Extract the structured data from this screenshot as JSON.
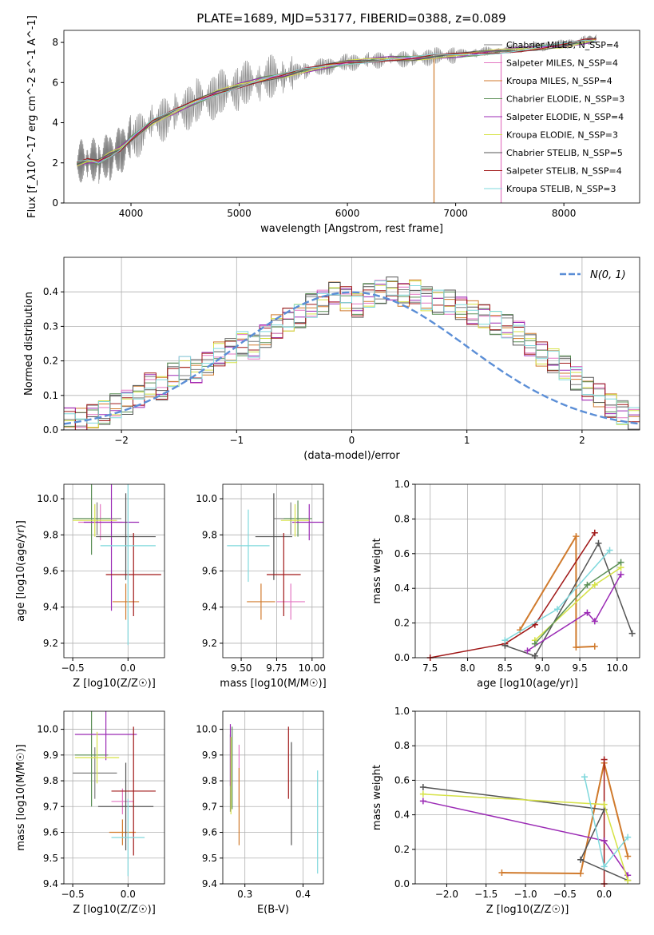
{
  "figure_title": "PLATE=1689, MJD=53177, FIBERID=0388, z=0.089",
  "models": [
    {
      "name": "Chabrier MILES, N_SSP=4",
      "color": "#7f7f7f"
    },
    {
      "name": "Salpeter MILES, N_SSP=4",
      "color": "#e377c2"
    },
    {
      "name": "Kroupa MILES, N_SSP=4",
      "color": "#d07a2c"
    },
    {
      "name": "Chabrier ELODIE, N_SSP=3",
      "color": "#5a8f55"
    },
    {
      "name": "Salpeter ELODIE, N_SSP=4",
      "color": "#9b2bb5"
    },
    {
      "name": "Kroupa ELODIE, N_SSP=3",
      "color": "#d6e246"
    },
    {
      "name": "Chabrier STELIB, N_SSP=5",
      "color": "#555555"
    },
    {
      "name": "Salpeter STELIB, N_SSP=4",
      "color": "#a01818"
    },
    {
      "name": "Kroupa STELIB, N_SSP=3",
      "color": "#7fd8dc"
    }
  ],
  "chart_data": [
    {
      "id": "spectrum",
      "type": "line",
      "xlabel": "wavelength [Angstrom, rest frame]",
      "ylabel": "Flux [f_λ10^-17 erg cm^-2 s^-1 A^-1]",
      "xlim": [
        3380,
        8700
      ],
      "ylim": [
        0,
        8.6
      ],
      "xticks": [
        4000,
        5000,
        6000,
        7000,
        8000
      ],
      "yticks": [
        0,
        2,
        4,
        6,
        8
      ],
      "legend": "top-right",
      "data_series": {
        "name": "data",
        "color": "#808080",
        "x": [
          3500,
          3600,
          3700,
          3800,
          3900,
          4000,
          4200,
          4400,
          4600,
          4800,
          5000,
          5200,
          5400,
          5600,
          5800,
          6000,
          6200,
          6400,
          6600,
          6800,
          7000,
          7200,
          7400,
          7600,
          7800,
          8000,
          8200,
          8300
        ],
        "y": [
          1.9,
          2.1,
          2.0,
          2.3,
          2.6,
          3.2,
          4.0,
          4.5,
          5.0,
          5.4,
          5.8,
          6.1,
          6.3,
          6.6,
          6.8,
          7.0,
          7.1,
          7.2,
          7.2,
          7.3,
          7.4,
          7.5,
          7.6,
          7.7,
          7.8,
          7.9,
          8.1,
          8.2
        ]
      },
      "model_x": [
        3500,
        3600,
        3700,
        3800,
        3900,
        4000,
        4200,
        4400,
        4600,
        4800,
        5000,
        5200,
        5400,
        5600,
        5800,
        6000,
        6200,
        6400,
        6600,
        6800,
        7000,
        7200,
        7400,
        7600,
        7800,
        8000,
        8200,
        8300
      ],
      "model_y": [
        1.95,
        2.1,
        2.05,
        2.4,
        2.7,
        3.2,
        4.05,
        4.55,
        5.05,
        5.5,
        5.85,
        6.15,
        6.35,
        6.6,
        6.8,
        7.0,
        7.1,
        7.2,
        7.2,
        7.3,
        7.35,
        7.45,
        7.55,
        7.65,
        7.75,
        7.85,
        8.05,
        8.1
      ]
    },
    {
      "id": "residuals",
      "type": "line",
      "xlabel": "(data-model)/error",
      "ylabel": "Normed distribution",
      "xlim": [
        -2.5,
        2.5
      ],
      "ylim": [
        0,
        0.5
      ],
      "xticks": [
        -2,
        -1,
        0,
        1,
        2
      ],
      "yticks": [
        0.0,
        0.1,
        0.2,
        0.3,
        0.4
      ],
      "legend": "top-right",
      "gaussian_label": "N(0, 1)",
      "gaussian_color": "#5b8ed6",
      "bin_edges_start": -2.5,
      "bin_width": 0.1,
      "hist": [
        0.03,
        0.03,
        0.04,
        0.05,
        0.07,
        0.08,
        0.1,
        0.13,
        0.12,
        0.16,
        0.18,
        0.17,
        0.19,
        0.22,
        0.23,
        0.25,
        0.24,
        0.27,
        0.3,
        0.32,
        0.33,
        0.36,
        0.37,
        0.4,
        0.38,
        0.36,
        0.39,
        0.4,
        0.41,
        0.39,
        0.4,
        0.38,
        0.37,
        0.37,
        0.35,
        0.34,
        0.33,
        0.31,
        0.3,
        0.28,
        0.25,
        0.22,
        0.2,
        0.18,
        0.15,
        0.12,
        0.1,
        0.07,
        0.05,
        0.03
      ]
    },
    {
      "id": "age_vs_Z",
      "type": "scatter",
      "xlabel": "Z [log10(Z/Z☉)]",
      "ylabel": "age [log10(age/yr)]",
      "xlim": [
        -0.58,
        0.33
      ],
      "ylim": [
        9.12,
        10.08
      ],
      "xticks": [
        -0.5,
        0.0
      ],
      "yticks": [
        9.2,
        9.4,
        9.6,
        9.8,
        10.0
      ],
      "points": [
        {
          "x": -0.28,
          "y": 9.89,
          "xerr": 0.22,
          "yerr": 0.09,
          "model": 0
        },
        {
          "x": -0.25,
          "y": 9.87,
          "xerr": 0.2,
          "yerr": 0.1,
          "model": 1
        },
        {
          "x": -0.02,
          "y": 9.43,
          "xerr": 0.12,
          "yerr": 0.1,
          "model": 2
        },
        {
          "x": -0.33,
          "y": 9.89,
          "xerr": 0.17,
          "yerr": 0.2,
          "model": 3
        },
        {
          "x": -0.15,
          "y": 9.87,
          "xerr": 0.25,
          "yerr": 0.49,
          "model": 4
        },
        {
          "x": -0.3,
          "y": 9.88,
          "xerr": 0.2,
          "yerr": 0.09,
          "model": 5
        },
        {
          "x": -0.02,
          "y": 9.79,
          "xerr": 0.27,
          "yerr": 0.24,
          "model": 6
        },
        {
          "x": 0.05,
          "y": 9.58,
          "xerr": 0.25,
          "yerr": 0.23,
          "model": 7
        },
        {
          "x": 0.0,
          "y": 9.74,
          "xerr": 0.25,
          "yerr": 0.55,
          "model": 8
        }
      ]
    },
    {
      "id": "age_vs_mass",
      "type": "scatter",
      "xlabel": "mass [log10(M/M☉)]",
      "ylabel": "",
      "xlim": [
        9.37,
        10.08
      ],
      "ylim": [
        9.12,
        10.08
      ],
      "xticks": [
        9.5,
        9.75,
        10.0
      ],
      "yticks": [
        9.2,
        9.4,
        9.6,
        9.8,
        10.0
      ],
      "points": [
        {
          "x": 9.85,
          "y": 9.89,
          "xerr": 0.12,
          "yerr": 0.09,
          "model": 0
        },
        {
          "x": 9.85,
          "y": 9.43,
          "xerr": 0.1,
          "yerr": 0.1,
          "model": 1
        },
        {
          "x": 9.64,
          "y": 9.43,
          "xerr": 0.1,
          "yerr": 0.1,
          "model": 2
        },
        {
          "x": 9.9,
          "y": 9.89,
          "xerr": 0.1,
          "yerr": 0.1,
          "model": 3
        },
        {
          "x": 9.98,
          "y": 9.87,
          "xerr": 0.12,
          "yerr": 0.1,
          "model": 4
        },
        {
          "x": 9.88,
          "y": 9.88,
          "xerr": 0.1,
          "yerr": 0.09,
          "model": 5
        },
        {
          "x": 9.73,
          "y": 9.79,
          "xerr": 0.13,
          "yerr": 0.24,
          "model": 6
        },
        {
          "x": 9.8,
          "y": 9.58,
          "xerr": 0.12,
          "yerr": 0.23,
          "model": 7
        },
        {
          "x": 9.55,
          "y": 9.74,
          "xerr": 0.15,
          "yerr": 0.2,
          "model": 8
        }
      ]
    },
    {
      "id": "weight_vs_age",
      "type": "line",
      "xlabel": "age  [log10(age/yr)]",
      "ylabel": "mass weight",
      "xlim": [
        7.3,
        10.3
      ],
      "ylim": [
        0,
        1.0
      ],
      "xticks": [
        7.5,
        8.0,
        8.5,
        9.0,
        9.5,
        10.0
      ],
      "yticks": [
        0.0,
        0.2,
        0.4,
        0.6,
        0.8,
        1.0
      ],
      "lines": [
        {
          "model": 2,
          "x": [
            8.7,
            9.45,
            9.45,
            9.7
          ],
          "y": [
            0.16,
            0.7,
            0.06,
            0.065
          ]
        },
        {
          "model": 7,
          "x": [
            7.5,
            8.5,
            8.9,
            9.7
          ],
          "y": [
            0.0,
            0.08,
            0.19,
            0.72
          ]
        },
        {
          "model": 6,
          "x": [
            8.5,
            8.9,
            9.75,
            10.2
          ],
          "y": [
            0.07,
            0.01,
            0.66,
            0.14
          ]
        },
        {
          "model": 4,
          "x": [
            8.8,
            9.6,
            9.7,
            10.05
          ],
          "y": [
            0.04,
            0.26,
            0.21,
            0.48
          ]
        },
        {
          "model": 5,
          "x": [
            8.9,
            9.7,
            10.05
          ],
          "y": [
            0.1,
            0.42,
            0.52
          ]
        },
        {
          "model": 3,
          "x": [
            8.9,
            9.6,
            10.05
          ],
          "y": [
            0.08,
            0.42,
            0.55
          ]
        },
        {
          "model": 8,
          "x": [
            8.5,
            9.2,
            9.9
          ],
          "y": [
            0.1,
            0.28,
            0.62
          ]
        }
      ]
    },
    {
      "id": "mass_vs_Z",
      "type": "scatter",
      "xlabel": "Z [log10(Z/Z☉)]",
      "ylabel": "mass [log10(M/M☉)]",
      "xlim": [
        -0.58,
        0.33
      ],
      "ylim": [
        9.4,
        10.07
      ],
      "xticks": [
        -0.5,
        0.0
      ],
      "yticks": [
        9.4,
        9.5,
        9.6,
        9.7,
        9.8,
        9.9,
        10.0
      ],
      "points": [
        {
          "x": -0.3,
          "y": 9.83,
          "xerr": 0.2,
          "yerr": 0.1,
          "model": 0
        },
        {
          "x": -0.05,
          "y": 9.72,
          "xerr": 0.1,
          "yerr": 0.05,
          "model": 1
        },
        {
          "x": -0.05,
          "y": 9.6,
          "xerr": 0.12,
          "yerr": 0.05,
          "model": 2
        },
        {
          "x": -0.33,
          "y": 9.9,
          "xerr": 0.15,
          "yerr": 0.2,
          "model": 3
        },
        {
          "x": -0.2,
          "y": 9.98,
          "xerr": 0.28,
          "yerr": 0.1,
          "model": 4
        },
        {
          "x": -0.28,
          "y": 9.89,
          "xerr": 0.2,
          "yerr": 0.1,
          "model": 5
        },
        {
          "x": -0.02,
          "y": 9.7,
          "xerr": 0.25,
          "yerr": 0.17,
          "model": 6
        },
        {
          "x": 0.05,
          "y": 9.76,
          "xerr": 0.2,
          "yerr": 0.25,
          "model": 7
        },
        {
          "x": 0.0,
          "y": 9.58,
          "xerr": 0.15,
          "yerr": 0.15,
          "model": 8
        }
      ]
    },
    {
      "id": "mass_vs_EBV",
      "type": "scatter",
      "xlabel": "E(B-V)",
      "ylabel": "",
      "xlim": [
        0.262,
        0.435
      ],
      "ylim": [
        9.4,
        10.07
      ],
      "xticks": [
        0.3,
        0.4
      ],
      "yticks": [
        9.4,
        9.5,
        9.6,
        9.7,
        9.8,
        9.9,
        10.0
      ],
      "points": [
        {
          "x": 0.275,
          "y": 9.83,
          "yerr": 0.15,
          "model": 0
        },
        {
          "x": 0.29,
          "y": 9.82,
          "yerr": 0.12,
          "model": 1
        },
        {
          "x": 0.29,
          "y": 9.7,
          "yerr": 0.15,
          "model": 2
        },
        {
          "x": 0.278,
          "y": 9.85,
          "yerr": 0.16,
          "model": 3
        },
        {
          "x": 0.275,
          "y": 9.9,
          "yerr": 0.12,
          "model": 4
        },
        {
          "x": 0.276,
          "y": 9.82,
          "yerr": 0.15,
          "model": 5
        },
        {
          "x": 0.38,
          "y": 9.75,
          "yerr": 0.2,
          "model": 6
        },
        {
          "x": 0.375,
          "y": 9.87,
          "yerr": 0.14,
          "model": 7
        },
        {
          "x": 0.425,
          "y": 9.64,
          "yerr": 0.2,
          "model": 8
        }
      ]
    },
    {
      "id": "weight_vs_Z",
      "type": "line",
      "xlabel": "Z [log10(Z/Z☉)]",
      "ylabel": "mass weight",
      "xlim": [
        -2.4,
        0.45
      ],
      "ylim": [
        0,
        1.0
      ],
      "xticks": [
        -2.0,
        -1.5,
        -1.0,
        -0.5,
        0.0
      ],
      "yticks": [
        0.0,
        0.2,
        0.4,
        0.6,
        0.8,
        1.0
      ],
      "lines": [
        {
          "model": 2,
          "x": [
            -1.3,
            -0.3,
            0.0,
            0.3
          ],
          "y": [
            0.065,
            0.06,
            0.7,
            0.16
          ]
        },
        {
          "model": 7,
          "x": [
            0.0,
            0.0,
            0.0
          ],
          "y": [
            0.0,
            0.72,
            0.25
          ]
        },
        {
          "model": 6,
          "x": [
            -2.3,
            0.0,
            -0.3,
            0.3
          ],
          "y": [
            0.56,
            0.43,
            0.14,
            0.02
          ]
        },
        {
          "model": 4,
          "x": [
            -2.3,
            0.0,
            0.3
          ],
          "y": [
            0.48,
            0.25,
            0.05
          ]
        },
        {
          "model": 5,
          "x": [
            -2.3,
            0.0,
            0.3
          ],
          "y": [
            0.52,
            0.46,
            0.02
          ]
        },
        {
          "model": 8,
          "x": [
            -0.25,
            0.0,
            0.3
          ],
          "y": [
            0.62,
            0.1,
            0.27
          ]
        }
      ]
    }
  ]
}
